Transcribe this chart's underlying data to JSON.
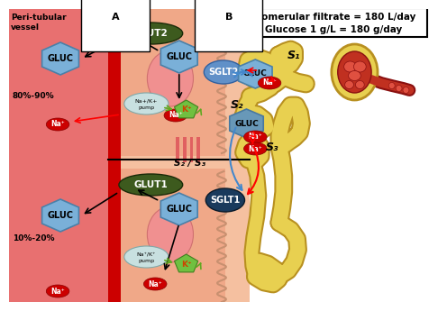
{
  "box_b_text1": "Glomerular filtrate = 180 L/day",
  "box_b_text2": "Glucose 1 g/L = 180 g/day",
  "label_A": "A",
  "label_B": "B",
  "label_peri": "Peri-tubular",
  "label_vessel": "vessel",
  "label_s1_top": "S₁",
  "label_s2": "S₂",
  "label_s3": "S₃",
  "label_s1_right": "S₁",
  "label_s2s3": "S₂ / S₃",
  "label_80_90": "80%-90%",
  "label_10_20": "10%-20%",
  "colors": {
    "peri_bg": "#e87070",
    "red_vessel": "#cc0000",
    "tubule_bg": "#f5c0a0",
    "cell_bg": "#f0a888",
    "dark_olive": "#3d5a1e",
    "light_blue_hex": "#7ab0d8",
    "steel_blue": "#4a80a8",
    "sglt2_blue": "#6090c8",
    "sglt1_dark": "#1a3a5c",
    "red_oval": "#cc0000",
    "green_kplus": "#70c040",
    "light_pump": "#c8e0e0",
    "kidney_yellow": "#e8d050",
    "kidney_outline": "#b89020",
    "glom_red": "#c03020",
    "glom_light": "#e05040",
    "white": "#ffffff",
    "black": "#000000",
    "bg_white": "#ffffff"
  }
}
